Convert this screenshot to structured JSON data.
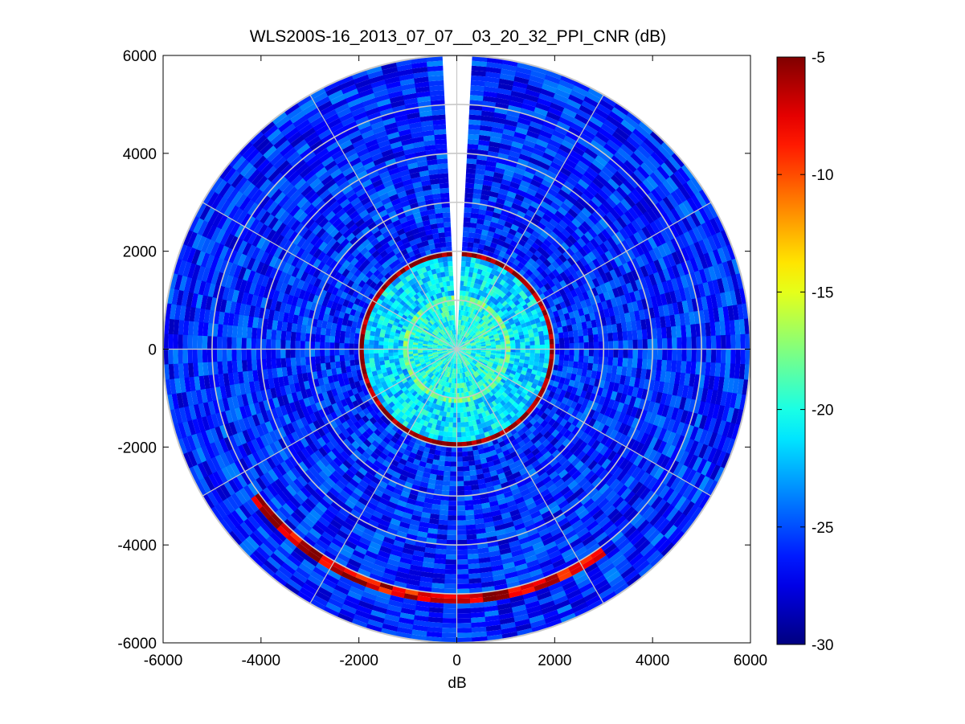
{
  "chart_data": {
    "type": "heatmap",
    "subtype": "polar-ppi",
    "title": "WLS200S-16_2013_07_07__03_20_32_PPI_CNR (dB)",
    "xlabel": "dB",
    "ylabel": "",
    "xlim": [
      -6000,
      6000
    ],
    "ylim": [
      -6000,
      6000
    ],
    "xticks": [
      -6000,
      -4000,
      -2000,
      0,
      2000,
      4000,
      6000
    ],
    "yticks": [
      6000,
      4000,
      2000,
      0,
      -2000,
      -4000,
      -6000
    ],
    "grid_rings": [
      1000,
      2000,
      3000,
      4000,
      5000,
      6000
    ],
    "grid_spokes_deg": [
      0,
      30,
      60,
      90,
      120,
      150,
      180,
      210,
      240,
      270,
      300,
      330
    ],
    "max_range": 6000,
    "missing_sector_deg": [
      -4,
      4
    ],
    "colorbar": {
      "min": -30,
      "max": -5,
      "ticks": [
        -5,
        -10,
        -15,
        -20,
        -25,
        -30
      ],
      "colormap": "jet"
    },
    "features": [
      {
        "name": "background",
        "range": [
          0,
          6000
        ],
        "cnr_db": -26
      },
      {
        "name": "near-field core",
        "range": [
          0,
          1000
        ],
        "cnr_db": -20
      },
      {
        "name": "near ring",
        "range": [
          1000,
          1100
        ],
        "cnr_db": -18
      },
      {
        "name": "bright ring",
        "range": [
          1900,
          2050
        ],
        "cnr_db": -6
      },
      {
        "name": "far arc",
        "range": [
          5000,
          5200
        ],
        "angle_deg": [
          145,
          235
        ],
        "cnr_db": -7
      }
    ]
  }
}
